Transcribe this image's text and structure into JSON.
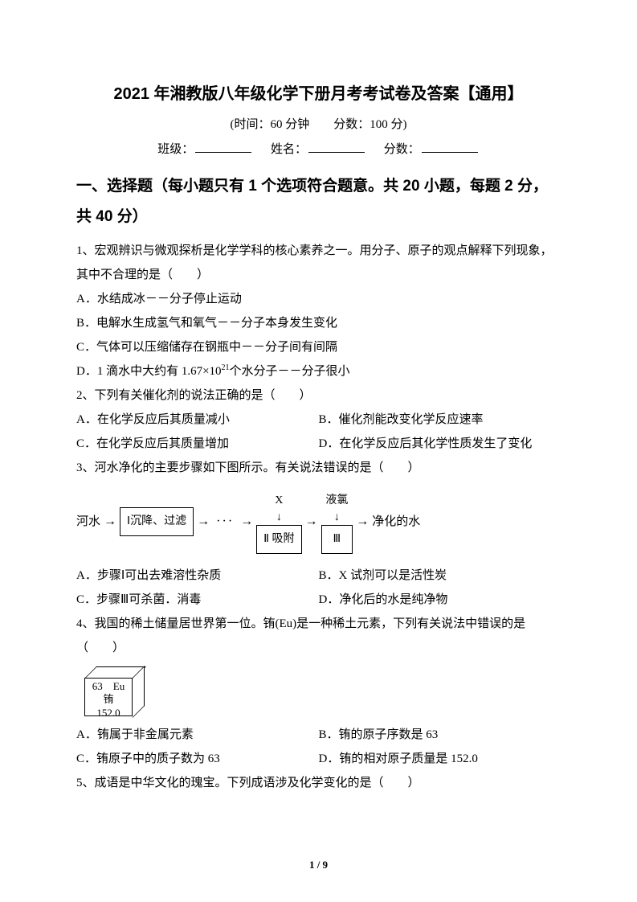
{
  "title": "2021 年湘教版八年级化学下册月考考试卷及答案【通用】",
  "meta": "(时间：60 分钟　　分数：100 分)",
  "blanks": {
    "class": "班级：",
    "name": "姓名：",
    "score": "分数："
  },
  "section1": "一、选择题（每小题只有 1 个选项符合题意。共 20 小题，每题 2 分，共 40 分）",
  "q1": {
    "stem": "1、宏观辨识与微观探析是化学学科的核心素养之一。用分子、原子的观点解释下列现象，其中不合理的是（　　）",
    "a": "A．水结成冰－－分子停止运动",
    "b": "B．电解水生成氢气和氧气－－分子本身发生变化",
    "c": "C．气体可以压缩储存在钢瓶中－－分子间有间隔",
    "d_pre": "D．1 滴水中大约有 1.67×10",
    "d_exp": "21",
    "d_post": "个水分子－－分子很小"
  },
  "q2": {
    "stem": "2、下列有关催化剂的说法正确的是（　　）",
    "a": "A．在化学反应后其质量减小",
    "b": "B．催化剂能改变化学反应速率",
    "c": "C．在化学反应后其质量增加",
    "d": "D．在化学反应后其化学性质发生了变化"
  },
  "q3": {
    "stem": "3、河水净化的主要步骤如下图所示。有关说法错误的是（　　）",
    "flow": {
      "start": "河水",
      "box1": "Ⅰ沉降、过滤",
      "xlabel": "X",
      "box2": "Ⅱ 吸附",
      "box3lbl": "液氯",
      "box3": "Ⅲ",
      "end": "净化的水"
    },
    "a": "A．步骤Ⅰ可出去难溶性杂质",
    "b": "B．X 试剂可以是活性炭",
    "c": "C．步骤Ⅲ可杀菌．消毒",
    "d": "D．净化后的水是纯净物"
  },
  "q4": {
    "stem": "4、我国的稀土储量居世界第一位。铕(Eu)是一种稀土元素，下列有关说法中错误的是（　　）",
    "cube_line1": "63　Eu",
    "cube_line2": "铕",
    "cube_line3": "152.0",
    "a": "A．铕属于非金属元素",
    "b": "B．铕的原子序数是 63",
    "c": "C．铕原子中的质子数为 63",
    "d": "D．铕的相对原子质量是 152.0"
  },
  "q5": {
    "stem": "5、成语是中华文化的瑰宝。下列成语涉及化学变化的是（　　）"
  },
  "pagenum": "1 / 9"
}
